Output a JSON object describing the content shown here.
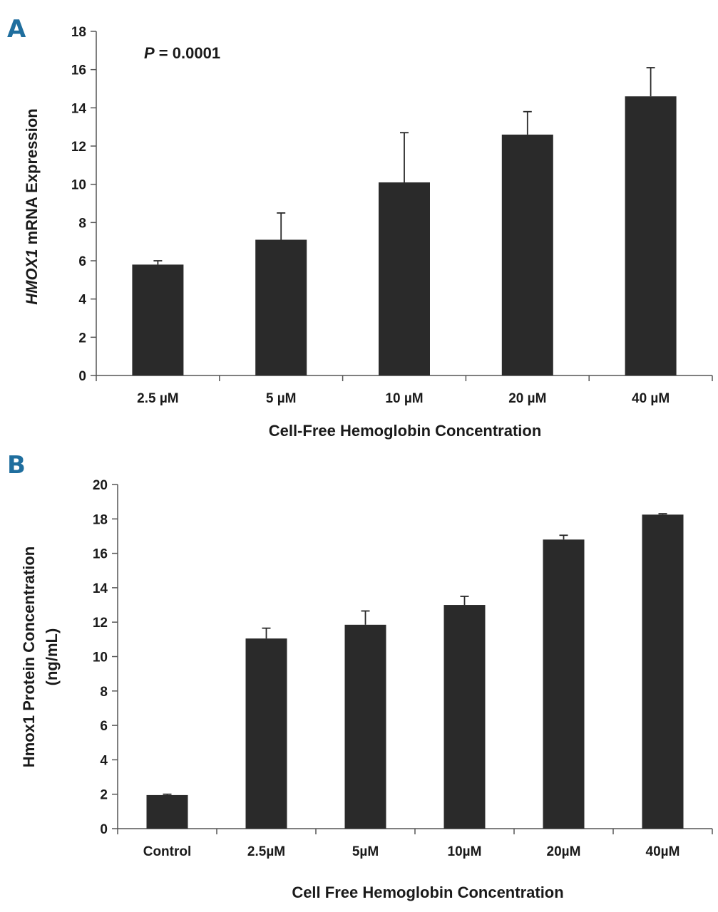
{
  "colors": {
    "bar": "#2a2a2a",
    "axis": "#555555",
    "text": "#1a1a1a",
    "panel_letter": "#1f6e9e"
  },
  "chart_data": [
    {
      "type": "bar",
      "panel_label": "A",
      "annotation_italic": "P",
      "annotation_rest": " = 0.0001",
      "ylabel_italic": "HMOX1",
      "ylabel_rest": " mRNA Expression",
      "xlabel": "Cell-Free Hemoglobin Concentration",
      "categories": [
        "2.5 µM",
        "5 µM",
        "10 µM",
        "20 µM",
        "40 µM"
      ],
      "values": [
        5.8,
        7.1,
        10.1,
        12.6,
        14.6
      ],
      "errors": [
        0.2,
        1.4,
        2.6,
        1.2,
        1.5
      ],
      "ylim": [
        0,
        18
      ],
      "yticks": [
        0,
        2,
        4,
        6,
        8,
        10,
        12,
        14,
        16,
        18
      ]
    },
    {
      "type": "bar",
      "panel_label": "B",
      "ylabel_line1": "Hmox1 Protein Concentration",
      "ylabel_line2": "(ng/mL)",
      "xlabel": "Cell Free Hemoglobin Concentration",
      "categories": [
        "Control",
        "2.5µM",
        "5µM",
        "10µM",
        "20µM",
        "40µM"
      ],
      "values": [
        1.95,
        11.05,
        11.85,
        13.0,
        16.8,
        18.25
      ],
      "errors": [
        0.05,
        0.6,
        0.8,
        0.5,
        0.25,
        0.05
      ],
      "ylim": [
        0,
        20
      ],
      "yticks": [
        0,
        2,
        4,
        6,
        8,
        10,
        12,
        14,
        16,
        18,
        20
      ]
    }
  ]
}
